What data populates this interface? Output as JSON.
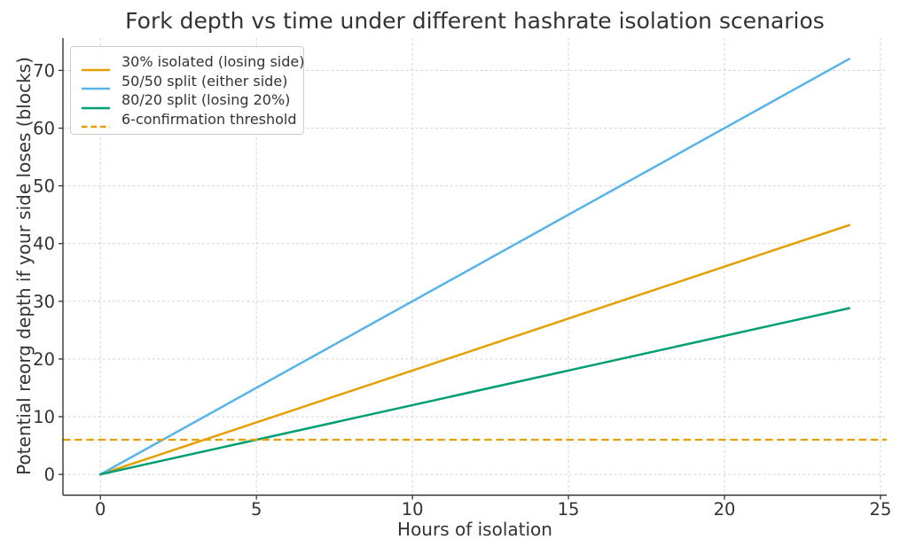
{
  "chart_data": {
    "type": "line",
    "title": "Fork depth vs time under different hashrate isolation scenarios",
    "xlabel": "Hours of isolation",
    "ylabel": "Potential reorg depth if your side loses (blocks)",
    "xlim": [
      -1.2,
      25.2
    ],
    "ylim": [
      -3.6,
      75.6
    ],
    "xticks": [
      0,
      5,
      10,
      15,
      20,
      25
    ],
    "yticks": [
      0,
      10,
      20,
      30,
      40,
      50,
      60,
      70
    ],
    "grid": true,
    "legend_position": "upper left",
    "series": [
      {
        "name": "30% isolated (losing side)",
        "color": "#E69F00",
        "linestyle": "solid",
        "x": [
          0,
          24
        ],
        "y": [
          0,
          43.2
        ]
      },
      {
        "name": "50/50 split (either side)",
        "color": "#56B4E9",
        "linestyle": "solid",
        "x": [
          0,
          24
        ],
        "y": [
          0,
          72
        ]
      },
      {
        "name": "80/20 split (losing 20%)",
        "color": "#009E73",
        "linestyle": "solid",
        "x": [
          0,
          24
        ],
        "y": [
          0,
          28.8
        ]
      },
      {
        "name": "6-confirmation threshold",
        "color": "#E69F00",
        "linestyle": "dashed",
        "hline": 6
      }
    ],
    "colors": {
      "grid": "#d4d4d4",
      "axis": "#333333",
      "text": "#333333"
    }
  }
}
